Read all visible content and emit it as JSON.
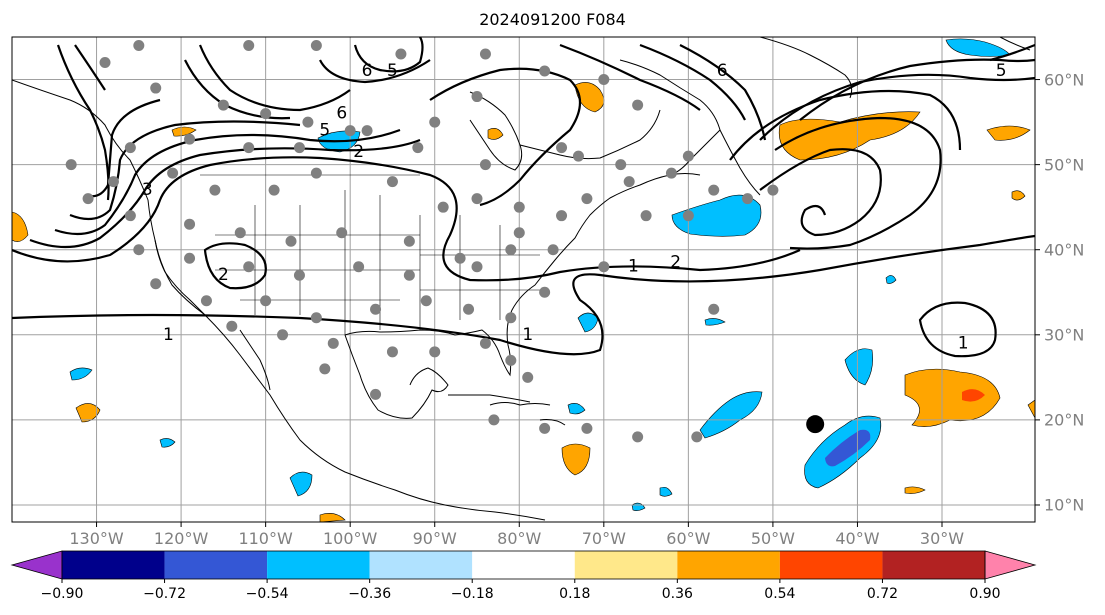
{
  "title": "2024091200 F084",
  "map": {
    "extent": {
      "lon_min": -140,
      "lon_max": -19,
      "lat_min": 8,
      "lat_max": 65
    },
    "lon_ticks": [
      {
        "lon": -130,
        "label": "130°W"
      },
      {
        "lon": -120,
        "label": "120°W"
      },
      {
        "lon": -110,
        "label": "110°W"
      },
      {
        "lon": -100,
        "label": "100°W"
      },
      {
        "lon": -90,
        "label": "90°W"
      },
      {
        "lon": -80,
        "label": "80°W"
      },
      {
        "lon": -70,
        "label": "70°W"
      },
      {
        "lon": -60,
        "label": "60°W"
      },
      {
        "lon": -50,
        "label": "50°W"
      },
      {
        "lon": -40,
        "label": "40°W"
      },
      {
        "lon": -30,
        "label": "30°W"
      }
    ],
    "lat_ticks": [
      {
        "lat": 10,
        "label": "10°N"
      },
      {
        "lat": 20,
        "label": "20°N"
      },
      {
        "lat": 30,
        "label": "30°N"
      },
      {
        "lat": 40,
        "label": "40°N"
      },
      {
        "lat": 50,
        "label": "50°N"
      },
      {
        "lat": 60,
        "label": "60°N"
      }
    ],
    "contour_labels": [
      {
        "text": "1",
        "lon": -121.5,
        "lat": 30.0
      },
      {
        "text": "1",
        "lon": -66.5,
        "lat": 38.0
      },
      {
        "text": "1",
        "lon": -27.5,
        "lat": 29.0
      },
      {
        "text": "1",
        "lon": -79.0,
        "lat": 30.0
      },
      {
        "text": "2",
        "lon": -61.5,
        "lat": 38.5
      },
      {
        "text": "2",
        "lon": -115.0,
        "lat": 37.0
      },
      {
        "text": "3",
        "lon": -124.0,
        "lat": 47.0
      },
      {
        "text": "5",
        "lon": -103.0,
        "lat": 54.0
      },
      {
        "text": "6",
        "lon": -101.0,
        "lat": 56.0
      },
      {
        "text": "6",
        "lon": -98.0,
        "lat": 61.0
      },
      {
        "text": "5",
        "lon": -95.0,
        "lat": 61.0
      },
      {
        "text": "6",
        "lon": -56.0,
        "lat": 61.0
      },
      {
        "text": "5",
        "lon": -23.0,
        "lat": 61.0
      },
      {
        "text": "2",
        "lon": -99.0,
        "lat": 51.5
      }
    ],
    "storm_marker": {
      "lon": -45,
      "lat": 19.5
    },
    "observation_points": [
      [
        -125,
        64
      ],
      [
        -112,
        64
      ],
      [
        -104,
        64
      ],
      [
        -94,
        63
      ],
      [
        -84,
        63
      ],
      [
        -77,
        61
      ],
      [
        -70,
        60
      ],
      [
        -66,
        57
      ],
      [
        -129,
        62
      ],
      [
        -123,
        59
      ],
      [
        -115,
        57
      ],
      [
        -110,
        56
      ],
      [
        -105,
        55
      ],
      [
        -100,
        54
      ],
      [
        -92,
        52
      ],
      [
        -126,
        52
      ],
      [
        -119,
        53
      ],
      [
        -112,
        52
      ],
      [
        -106,
        52
      ],
      [
        -98,
        54
      ],
      [
        -84,
        50
      ],
      [
        -133,
        50
      ],
      [
        -128,
        48
      ],
      [
        -121,
        49
      ],
      [
        -116,
        47
      ],
      [
        -109,
        47
      ],
      [
        -104,
        49
      ],
      [
        -95,
        48
      ],
      [
        -89,
        45
      ],
      [
        -131,
        46
      ],
      [
        -126,
        44
      ],
      [
        -119,
        43
      ],
      [
        -113,
        42
      ],
      [
        -107,
        41
      ],
      [
        -101,
        42
      ],
      [
        -93,
        41
      ],
      [
        -87,
        39
      ],
      [
        -125,
        40
      ],
      [
        -119,
        39
      ],
      [
        -112,
        38
      ],
      [
        -106,
        37
      ],
      [
        -99,
        38
      ],
      [
        -93,
        37
      ],
      [
        -85,
        38
      ],
      [
        -80,
        42
      ],
      [
        -75,
        44
      ],
      [
        -123,
        36
      ],
      [
        -117,
        34
      ],
      [
        -110,
        34
      ],
      [
        -104,
        32
      ],
      [
        -97,
        33
      ],
      [
        -91,
        34
      ],
      [
        -86,
        33
      ],
      [
        -81,
        32
      ],
      [
        -77,
        35
      ],
      [
        -114,
        31
      ],
      [
        -108,
        30
      ],
      [
        -102,
        29
      ],
      [
        -95,
        28
      ],
      [
        -90,
        28
      ],
      [
        -84,
        29
      ],
      [
        -81,
        27
      ],
      [
        -79,
        25
      ],
      [
        -103,
        26
      ],
      [
        -97,
        23
      ],
      [
        -83,
        20
      ],
      [
        -77,
        19
      ],
      [
        -72,
        19
      ],
      [
        -66,
        18
      ],
      [
        -59,
        18
      ],
      [
        -80,
        45
      ],
      [
        -85,
        46
      ],
      [
        -72,
        46
      ],
      [
        -67,
        48
      ],
      [
        -62,
        49
      ],
      [
        -57,
        47
      ],
      [
        -53,
        46
      ],
      [
        -60,
        44
      ],
      [
        -65,
        44
      ],
      [
        -75,
        52
      ],
      [
        -90,
        55
      ],
      [
        -85,
        58
      ],
      [
        -73,
        51
      ],
      [
        -68,
        50
      ],
      [
        -60,
        51
      ],
      [
        -50,
        47
      ],
      [
        -57,
        33
      ],
      [
        -70,
        38
      ],
      [
        -76,
        40
      ],
      [
        -81,
        40
      ]
    ],
    "colorbar": {
      "boundaries": [
        -0.9,
        -0.72,
        -0.54,
        -0.36,
        -0.18,
        0.18,
        0.36,
        0.54,
        0.72,
        0.9
      ],
      "tick_labels": [
        "−0.90",
        "−0.72",
        "−0.54",
        "−0.36",
        "−0.18",
        "0.18",
        "0.36",
        "0.54",
        "0.72",
        "0.90"
      ],
      "colors": [
        "#9932cc",
        "#00008b",
        "#3457d5",
        "#00bfff",
        "#b0e2ff",
        "#ffffff",
        "#ffe88a",
        "#ffa500",
        "#ff4500",
        "#b22222",
        "#ff82ab"
      ]
    }
  }
}
